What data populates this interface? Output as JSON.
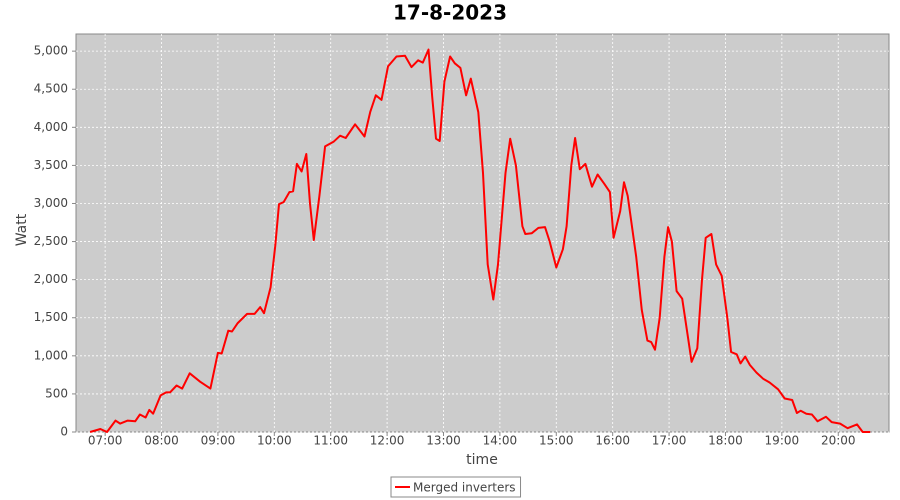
{
  "chart_data": {
    "type": "line",
    "title": "17-8-2023",
    "xlabel": "time",
    "ylabel": "Watt",
    "x": [
      "06:44",
      "06:55",
      "07:02",
      "07:11",
      "07:16",
      "07:24",
      "07:32",
      "07:37",
      "07:43",
      "07:47",
      "07:51",
      "07:59",
      "08:05",
      "08:09",
      "08:16",
      "08:22",
      "08:30",
      "08:41",
      "08:52",
      "09:00",
      "09:04",
      "09:11",
      "09:15",
      "09:21",
      "09:31",
      "09:39",
      "09:45",
      "09:49",
      "09:56",
      "10:01",
      "10:05",
      "10:10",
      "10:16",
      "10:20",
      "10:24",
      "10:29",
      "10:34",
      "10:38",
      "10:42",
      "10:48",
      "10:54",
      "11:03",
      "11:10",
      "11:16",
      "11:26",
      "11:36",
      "11:42",
      "11:48",
      "11:54",
      "12:01",
      "12:10",
      "12:19",
      "12:26",
      "12:33",
      "12:38",
      "12:44",
      "12:48",
      "12:52",
      "12:56",
      "13:01",
      "13:07",
      "13:12",
      "13:18",
      "13:24",
      "13:29",
      "13:37",
      "13:42",
      "13:47",
      "13:53",
      "13:58",
      "14:06",
      "14:11",
      "14:17",
      "14:24",
      "14:27",
      "14:34",
      "14:41",
      "14:48",
      "14:53",
      "15:00",
      "15:07",
      "15:11",
      "15:16",
      "15:20",
      "15:25",
      "15:31",
      "15:38",
      "15:44",
      "15:51",
      "15:57",
      "16:01",
      "16:08",
      "16:12",
      "16:16",
      "16:25",
      "16:31",
      "16:37",
      "16:41",
      "16:45",
      "16:50",
      "16:55",
      "16:59",
      "17:03",
      "17:08",
      "17:14",
      "17:20",
      "17:24",
      "17:30",
      "17:35",
      "17:39",
      "17:45",
      "17:50",
      "17:56",
      "18:02",
      "18:06",
      "18:12",
      "18:16",
      "18:21",
      "18:26",
      "18:33",
      "18:40",
      "18:47",
      "18:56",
      "19:03",
      "19:11",
      "19:16",
      "19:20",
      "19:26",
      "19:32",
      "19:38",
      "19:47",
      "19:53",
      "20:02",
      "20:10",
      "20:20",
      "20:26",
      "20:34"
    ],
    "series": [
      {
        "name": "Merged inverters",
        "color": "#ff0000",
        "values": [
          0,
          40,
          0,
          150,
          110,
          150,
          140,
          230,
          190,
          290,
          240,
          480,
          520,
          520,
          610,
          570,
          770,
          660,
          570,
          1040,
          1030,
          1330,
          1320,
          1430,
          1550,
          1550,
          1640,
          1560,
          1900,
          2450,
          2990,
          3020,
          3150,
          3160,
          3520,
          3420,
          3650,
          3000,
          2520,
          3100,
          3750,
          3810,
          3890,
          3860,
          4040,
          3880,
          4200,
          4420,
          4360,
          4800,
          4930,
          4940,
          4790,
          4880,
          4850,
          5020,
          4400,
          3850,
          3820,
          4600,
          4930,
          4840,
          4780,
          4420,
          4640,
          4200,
          3400,
          2200,
          1740,
          2200,
          3400,
          3850,
          3500,
          2700,
          2600,
          2610,
          2680,
          2690,
          2500,
          2160,
          2400,
          2700,
          3500,
          3860,
          3450,
          3520,
          3220,
          3380,
          3260,
          3150,
          2550,
          2900,
          3280,
          3100,
          2300,
          1600,
          1200,
          1180,
          1080,
          1500,
          2300,
          2690,
          2500,
          1850,
          1750,
          1250,
          920,
          1100,
          2000,
          2550,
          2600,
          2200,
          2050,
          1500,
          1050,
          1020,
          900,
          990,
          880,
          780,
          700,
          650,
          560,
          440,
          420,
          250,
          280,
          240,
          230,
          140,
          200,
          130,
          110,
          50,
          100,
          0,
          0
        ]
      }
    ],
    "xlim": [
      "06:29",
      "20:54"
    ],
    "xticks": [
      "07:00",
      "08:00",
      "09:00",
      "10:00",
      "11:00",
      "12:00",
      "13:00",
      "14:00",
      "15:00",
      "16:00",
      "17:00",
      "18:00",
      "19:00",
      "20:00"
    ],
    "ylim": [
      0,
      5225
    ],
    "yticks": [
      0,
      500,
      {
        "value": 1000,
        "label": "1,000"
      },
      {
        "value": 1500,
        "label": "1,500"
      },
      {
        "value": 2000,
        "label": "2,000"
      },
      {
        "value": 2500,
        "label": "2,500"
      },
      {
        "value": 3000,
        "label": "3,000"
      },
      {
        "value": 3500,
        "label": "3,500"
      },
      {
        "value": 4000,
        "label": "4,000"
      },
      {
        "value": 4500,
        "label": "4,500"
      },
      {
        "value": 5000,
        "label": "5,000"
      }
    ],
    "grid": true,
    "legend": "bottom",
    "plot_background": "#cccccc"
  }
}
